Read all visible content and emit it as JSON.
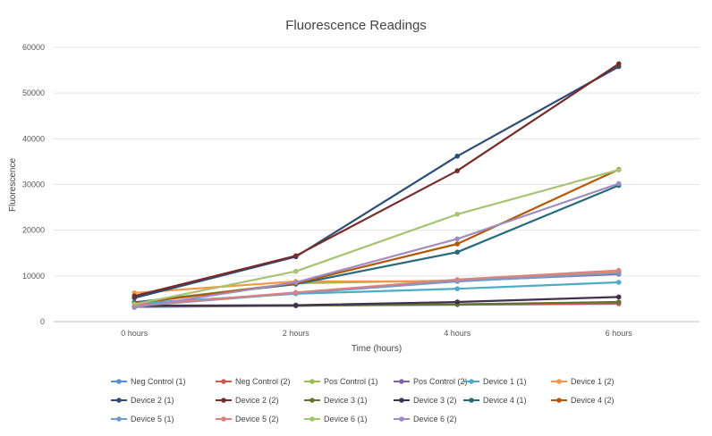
{
  "chart_data": {
    "type": "line",
    "title": "Fluorescence Readings",
    "xlabel": "Time (hours)",
    "ylabel": "Fluorescence",
    "categories": [
      "0 hours",
      "2 hours",
      "4 hours",
      "6 hours"
    ],
    "ylim": [
      0,
      60000
    ],
    "yticks": [
      0,
      10000,
      20000,
      30000,
      40000,
      50000,
      60000
    ],
    "grid": true,
    "legend_position": "bottom",
    "series": [
      {
        "name": "Neg Control (1)",
        "color": "#5a8fcf",
        "values": [
          3200,
          3500,
          3700,
          3900
        ]
      },
      {
        "name": "Neg Control (2)",
        "color": "#d0564f",
        "values": [
          3300,
          3500,
          3800,
          4000
        ]
      },
      {
        "name": "Pos Control (1)",
        "color": "#9bbb59",
        "values": [
          4200,
          8400,
          9000,
          10800
        ]
      },
      {
        "name": "Pos Control (2)",
        "color": "#8064a2",
        "values": [
          3600,
          6300,
          8900,
          10400
        ]
      },
      {
        "name": "Device 1 (1)",
        "color": "#4bacc6",
        "values": [
          4000,
          6100,
          7200,
          8600
        ]
      },
      {
        "name": "Device 1 (2)",
        "color": "#f79646",
        "values": [
          6300,
          8800,
          8800,
          11000
        ]
      },
      {
        "name": "Device 2 (1)",
        "color": "#2c4d75",
        "values": [
          5200,
          14200,
          36200,
          55800
        ]
      },
      {
        "name": "Device 2 (2)",
        "color": "#772c2a",
        "values": [
          5600,
          14400,
          33000,
          56400
        ]
      },
      {
        "name": "Device 3 (1)",
        "color": "#5f7530",
        "values": [
          3400,
          3500,
          3800,
          4300
        ]
      },
      {
        "name": "Device 3 (2)",
        "color": "#403151",
        "values": [
          3500,
          3600,
          4300,
          5400
        ]
      },
      {
        "name": "Device 4 (1)",
        "color": "#276a7c",
        "values": [
          4200,
          8200,
          15200,
          29800
        ]
      },
      {
        "name": "Device 4 (2)",
        "color": "#b65708",
        "values": [
          4000,
          8400,
          17000,
          33300
        ]
      },
      {
        "name": "Device 5 (1)",
        "color": "#729aca",
        "values": [
          3400,
          6200,
          8800,
          10600
        ]
      },
      {
        "name": "Device 5 (2)",
        "color": "#d9827f",
        "values": [
          3500,
          6400,
          9200,
          11200
        ]
      },
      {
        "name": "Device 6 (1)",
        "color": "#a6c373",
        "values": [
          3800,
          11000,
          23500,
          33200
        ]
      },
      {
        "name": "Device 6 (2)",
        "color": "#a08bc0",
        "values": [
          3100,
          8600,
          18100,
          30200
        ]
      }
    ]
  }
}
